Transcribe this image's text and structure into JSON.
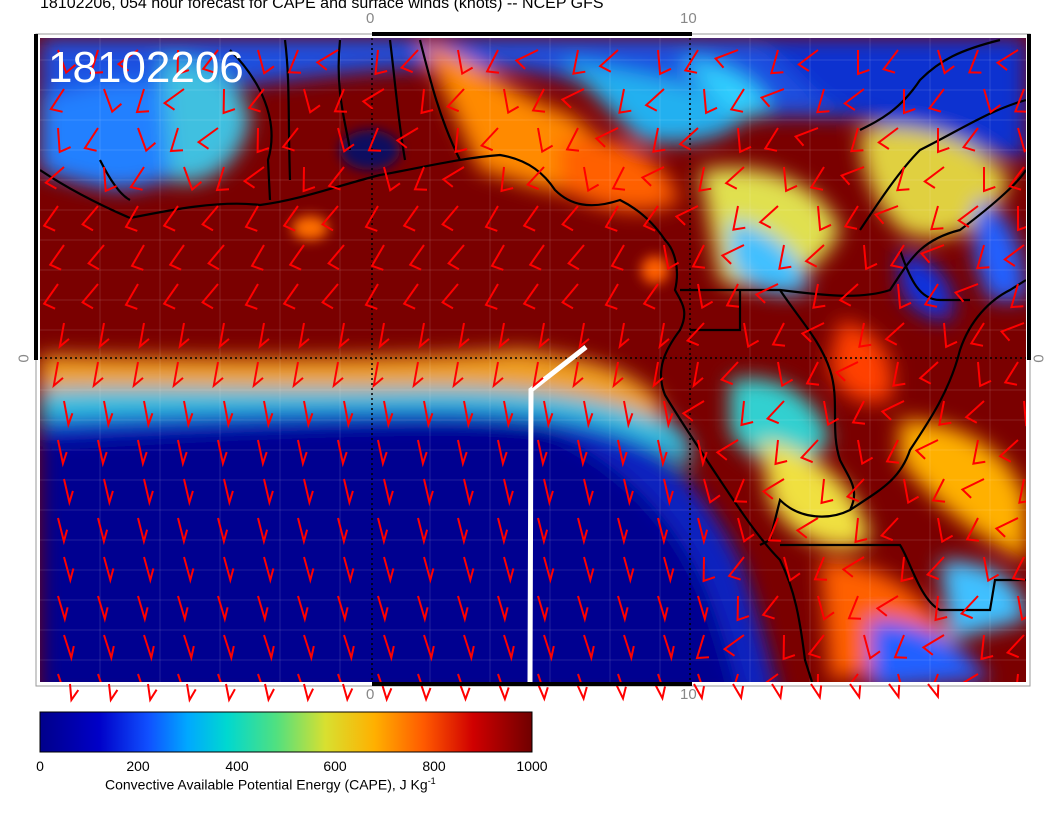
{
  "title": "18102206, 054 hour forecast for CAPE and surface winds (knots) -- NCEP GFS",
  "stamp": "18102206",
  "ticks": {
    "top": [
      "0",
      "10"
    ],
    "bottom": [
      "0",
      "10"
    ],
    "left": "0",
    "right": "0"
  },
  "colorbar": {
    "label_main": "Convective Available Potential Energy (CAPE), J Kg",
    "label_exp": "-1",
    "tick_labels": [
      "0",
      "200",
      "400",
      "600",
      "800",
      "1000"
    ],
    "min": 0,
    "max": 1000,
    "colors": [
      "#00008a",
      "#0000d8",
      "#1060ff",
      "#00c8e0",
      "#40e0a0",
      "#d8e040",
      "#ffb000",
      "#ff5000",
      "#c80000",
      "#700000"
    ]
  },
  "colors": {
    "barb": "#ff0000",
    "coast": "#000000",
    "section_line": "#ffffff"
  }
}
